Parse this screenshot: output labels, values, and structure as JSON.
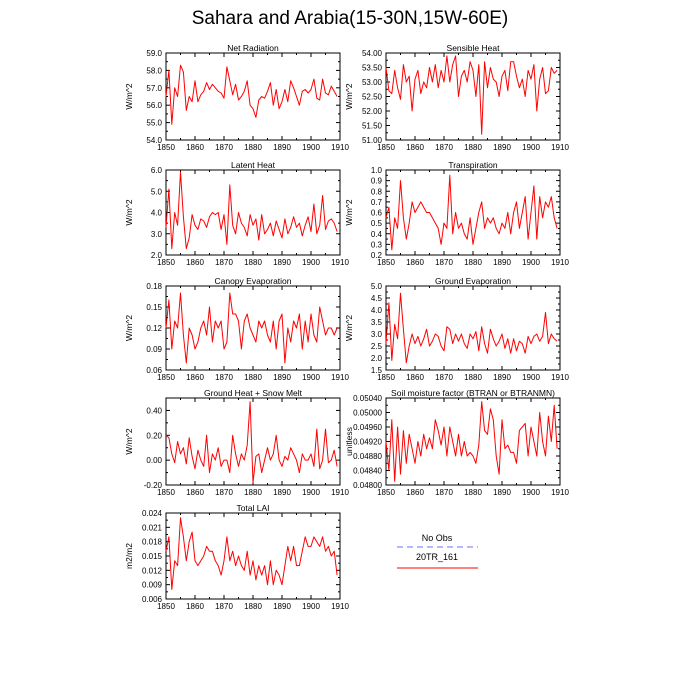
{
  "title": "Sahara and Arabia(15-30N,15W-60E)",
  "colors": {
    "series": "#ff0000",
    "no_obs": "#8c8cff",
    "axis": "#000000"
  },
  "legend": {
    "entries": [
      "No Obs",
      "20TR_161"
    ]
  },
  "chart_data": [
    {
      "type": "line",
      "title": "Net Radiation",
      "ylabel": "W/m^2",
      "xlim": [
        1850,
        1910
      ],
      "ylim": [
        54.0,
        59.0
      ],
      "yticks": [
        "54.0",
        "55.0",
        "56.0",
        "57.0",
        "58.0",
        "59.0"
      ],
      "x_start": 1850,
      "series": [
        {
          "name": "20TR_161",
          "values": [
            56.5,
            58.0,
            54.9,
            57.0,
            56.5,
            58.3,
            57.9,
            55.7,
            56.5,
            56.2,
            57.4,
            56.2,
            56.6,
            56.8,
            57.3,
            56.9,
            57.2,
            57.0,
            56.8,
            56.7,
            56.4,
            58.2,
            57.4,
            56.6,
            57.2,
            56.3,
            56.5,
            56.8,
            57.4,
            56.0,
            55.8,
            55.3,
            56.3,
            56.5,
            56.4,
            56.8,
            57.3,
            56.0,
            56.9,
            55.8,
            56.2,
            56.9,
            56.2,
            57.4,
            57.0,
            56.5,
            56.0,
            56.8,
            56.9,
            56.7,
            56.9,
            57.5,
            56.4,
            56.3,
            57.5,
            56.7,
            56.6,
            57.1,
            56.8,
            56.5
          ]
        }
      ]
    },
    {
      "type": "line",
      "title": "Sensible Heat",
      "ylabel": "W/m^2",
      "xlim": [
        1850,
        1910
      ],
      "ylim": [
        51.0,
        54.0
      ],
      "yticks": [
        "51.00",
        "51.50",
        "52.00",
        "52.50",
        "53.00",
        "53.50",
        "54.00"
      ],
      "x_start": 1850,
      "series": [
        {
          "name": "20TR_161",
          "values": [
            53.5,
            52.7,
            52.6,
            53.4,
            52.8,
            52.4,
            53.6,
            53.0,
            53.2,
            52.0,
            53.1,
            53.4,
            52.6,
            53.0,
            52.8,
            53.5,
            53.0,
            53.6,
            52.8,
            53.4,
            53.0,
            53.9,
            53.0,
            53.6,
            53.9,
            52.5,
            53.2,
            53.4,
            53.0,
            53.7,
            53.4,
            52.5,
            53.6,
            51.2,
            53.7,
            52.8,
            53.5,
            53.1,
            53.0,
            52.5,
            53.2,
            53.4,
            52.7,
            53.7,
            53.7,
            53.2,
            52.8,
            53.1,
            52.5,
            53.4,
            53.1,
            53.6,
            52.0,
            53.1,
            53.5,
            52.6,
            52.7,
            53.5,
            53.3,
            53.4
          ]
        }
      ]
    },
    {
      "type": "line",
      "title": "Latent Heat",
      "ylabel": "W/m^2",
      "xlim": [
        1850,
        1910
      ],
      "ylim": [
        2.0,
        6.0
      ],
      "yticks": [
        "2.0",
        "3.0",
        "4.0",
        "5.0",
        "6.0"
      ],
      "x_start": 1850,
      "series": [
        {
          "name": "20TR_161",
          "values": [
            3.3,
            5.1,
            2.3,
            4.0,
            3.4,
            5.9,
            3.8,
            2.3,
            2.8,
            3.9,
            3.4,
            3.2,
            3.7,
            3.6,
            3.3,
            3.8,
            4.0,
            3.9,
            4.0,
            3.2,
            3.9,
            2.5,
            5.3,
            3.4,
            3.0,
            4.0,
            3.5,
            3.3,
            2.9,
            3.9,
            3.4,
            3.7,
            2.7,
            3.9,
            3.0,
            3.2,
            3.5,
            2.9,
            3.6,
            3.2,
            2.8,
            3.7,
            3.0,
            3.3,
            3.8,
            3.3,
            3.5,
            2.9,
            3.4,
            3.8,
            3.1,
            4.4,
            3.0,
            3.4,
            4.8,
            3.2,
            3.6,
            3.7,
            3.5,
            3.1
          ]
        }
      ]
    },
    {
      "type": "line",
      "title": "Transpiration",
      "ylabel": "W/m^2",
      "xlim": [
        1850,
        1910
      ],
      "ylim": [
        0.2,
        1.0
      ],
      "yticks": [
        "0.2",
        "0.3",
        "0.4",
        "0.5",
        "0.6",
        "0.7",
        "0.8",
        "0.9",
        "1.0"
      ],
      "x_start": 1850,
      "series": [
        {
          "name": "20TR_161",
          "values": [
            0.55,
            0.65,
            0.25,
            0.55,
            0.45,
            0.9,
            0.55,
            0.35,
            0.5,
            0.7,
            0.6,
            0.65,
            0.7,
            0.65,
            0.6,
            0.6,
            0.55,
            0.5,
            0.45,
            0.3,
            0.5,
            0.45,
            0.95,
            0.4,
            0.6,
            0.45,
            0.5,
            0.4,
            0.35,
            0.55,
            0.3,
            0.45,
            0.6,
            0.7,
            0.45,
            0.55,
            0.5,
            0.55,
            0.45,
            0.4,
            0.5,
            0.45,
            0.6,
            0.4,
            0.6,
            0.7,
            0.45,
            0.6,
            0.75,
            0.35,
            0.6,
            0.85,
            0.35,
            0.75,
            0.55,
            0.7,
            0.65,
            0.75,
            0.55,
            0.45
          ]
        }
      ]
    },
    {
      "type": "line",
      "title": "Canopy Evaporation",
      "ylabel": "W/m^2",
      "xlim": [
        1850,
        1910
      ],
      "ylim": [
        0.06,
        0.18
      ],
      "yticks": [
        "0.06",
        "0.09",
        "0.12",
        "0.15",
        "0.18"
      ],
      "x_start": 1850,
      "series": [
        {
          "name": "20TR_161",
          "values": [
            0.12,
            0.16,
            0.09,
            0.13,
            0.12,
            0.17,
            0.11,
            0.07,
            0.12,
            0.11,
            0.09,
            0.1,
            0.12,
            0.13,
            0.11,
            0.15,
            0.1,
            0.13,
            0.12,
            0.13,
            0.09,
            0.1,
            0.17,
            0.14,
            0.14,
            0.13,
            0.09,
            0.13,
            0.14,
            0.12,
            0.11,
            0.1,
            0.13,
            0.12,
            0.13,
            0.11,
            0.1,
            0.13,
            0.09,
            0.13,
            0.14,
            0.07,
            0.12,
            0.1,
            0.13,
            0.12,
            0.14,
            0.09,
            0.13,
            0.1,
            0.14,
            0.11,
            0.1,
            0.15,
            0.13,
            0.11,
            0.12,
            0.12,
            0.11,
            0.12
          ]
        }
      ]
    },
    {
      "type": "line",
      "title": "Ground Evaporation",
      "ylabel": "W/m^2",
      "xlim": [
        1850,
        1910
      ],
      "ylim": [
        1.5,
        5.0
      ],
      "yticks": [
        "1.5",
        "2.0",
        "2.5",
        "3.0",
        "3.5",
        "4.0",
        "4.5",
        "5.0"
      ],
      "x_start": 1850,
      "series": [
        {
          "name": "20TR_161",
          "values": [
            2.6,
            4.3,
            1.9,
            3.4,
            2.8,
            4.7,
            3.2,
            1.8,
            2.5,
            3.0,
            2.6,
            2.9,
            2.5,
            2.8,
            3.2,
            2.5,
            2.7,
            3.0,
            2.9,
            2.5,
            2.3,
            3.3,
            3.2,
            2.6,
            3.0,
            2.7,
            3.0,
            2.6,
            2.4,
            3.0,
            2.8,
            3.1,
            2.3,
            3.3,
            2.6,
            2.2,
            3.2,
            2.8,
            2.5,
            2.7,
            3.0,
            2.4,
            2.8,
            2.2,
            2.8,
            2.3,
            2.7,
            2.6,
            2.2,
            2.9,
            2.6,
            2.9,
            3.0,
            2.7,
            2.9,
            3.9,
            2.6,
            3.0,
            2.8,
            2.7
          ]
        }
      ]
    },
    {
      "type": "line",
      "title": "Ground Heat + Snow Melt",
      "ylabel": "W/m^2",
      "xlim": [
        1850,
        1910
      ],
      "ylim": [
        -0.2,
        0.5
      ],
      "yticks": [
        "-0.20",
        "0.00",
        "0.20",
        "0.40"
      ],
      "x_start": 1850,
      "series": [
        {
          "name": "20TR_161",
          "values": [
            0.2,
            0.18,
            0.05,
            -0.02,
            0.15,
            0.05,
            0.1,
            -0.03,
            0.18,
            0.03,
            -0.07,
            0.08,
            0.0,
            -0.05,
            0.2,
            -0.1,
            0.05,
            0.0,
            0.1,
            -0.05,
            0.0,
            0.0,
            -0.1,
            0.2,
            0.05,
            -0.05,
            0.05,
            0.0,
            0.12,
            0.47,
            -0.18,
            0.03,
            0.05,
            -0.1,
            0.0,
            0.1,
            0.0,
            0.05,
            0.2,
            0.0,
            -0.05,
            0.03,
            0.0,
            0.1,
            0.05,
            0.0,
            -0.1,
            0.05,
            0.0,
            0.0,
            0.05,
            -0.05,
            0.25,
            -0.07,
            0.0,
            0.25,
            -0.02,
            0.0,
            0.08,
            -0.05
          ]
        }
      ]
    },
    {
      "type": "line",
      "title": "Soil moisture factor (BTRAN or BTRANMN)",
      "ylabel": "unitless",
      "xlim": [
        1850,
        1910
      ],
      "ylim": [
        0.048,
        0.0504
      ],
      "yticks": [
        "0.04800",
        "0.04840",
        "0.04880",
        "0.04920",
        "0.04960",
        "0.05000",
        "0.05040"
      ],
      "x_start": 1850,
      "series": [
        {
          "name": "20TR_161",
          "values": [
            0.0492,
            0.0484,
            0.0498,
            0.0481,
            0.0496,
            0.0483,
            0.0495,
            0.0486,
            0.0494,
            0.049,
            0.0486,
            0.0492,
            0.0488,
            0.0494,
            0.049,
            0.0493,
            0.049,
            0.0498,
            0.0495,
            0.0491,
            0.0496,
            0.0488,
            0.0496,
            0.0492,
            0.0488,
            0.0494,
            0.0488,
            0.0492,
            0.0488,
            0.0489,
            0.0488,
            0.0486,
            0.0491,
            0.0503,
            0.0495,
            0.0494,
            0.0501,
            0.0498,
            0.0488,
            0.0483,
            0.0498,
            0.049,
            0.0491,
            0.0489,
            0.0489,
            0.0486,
            0.0495,
            0.0496,
            0.0497,
            0.0488,
            0.0496,
            0.0492,
            0.0488,
            0.05,
            0.0492,
            0.0488,
            0.0499,
            0.0492,
            0.0502,
            0.049
          ]
        }
      ]
    },
    {
      "type": "line",
      "title": "Total LAI",
      "ylabel": "m2/m2",
      "xlim": [
        1850,
        1910
      ],
      "ylim": [
        0.006,
        0.024
      ],
      "yticks": [
        "0.006",
        "0.009",
        "0.012",
        "0.015",
        "0.018",
        "0.021",
        "0.024"
      ],
      "x_start": 1850,
      "series": [
        {
          "name": "20TR_161",
          "values": [
            0.016,
            0.019,
            0.008,
            0.014,
            0.013,
            0.023,
            0.019,
            0.014,
            0.018,
            0.02,
            0.014,
            0.013,
            0.014,
            0.015,
            0.017,
            0.016,
            0.016,
            0.014,
            0.013,
            0.011,
            0.014,
            0.019,
            0.014,
            0.016,
            0.013,
            0.015,
            0.013,
            0.012,
            0.016,
            0.011,
            0.014,
            0.01,
            0.013,
            0.011,
            0.013,
            0.009,
            0.014,
            0.009,
            0.012,
            0.011,
            0.009,
            0.013,
            0.017,
            0.014,
            0.017,
            0.013,
            0.013,
            0.016,
            0.019,
            0.017,
            0.017,
            0.019,
            0.018,
            0.017,
            0.019,
            0.016,
            0.017,
            0.015,
            0.016,
            0.011
          ]
        }
      ]
    }
  ]
}
